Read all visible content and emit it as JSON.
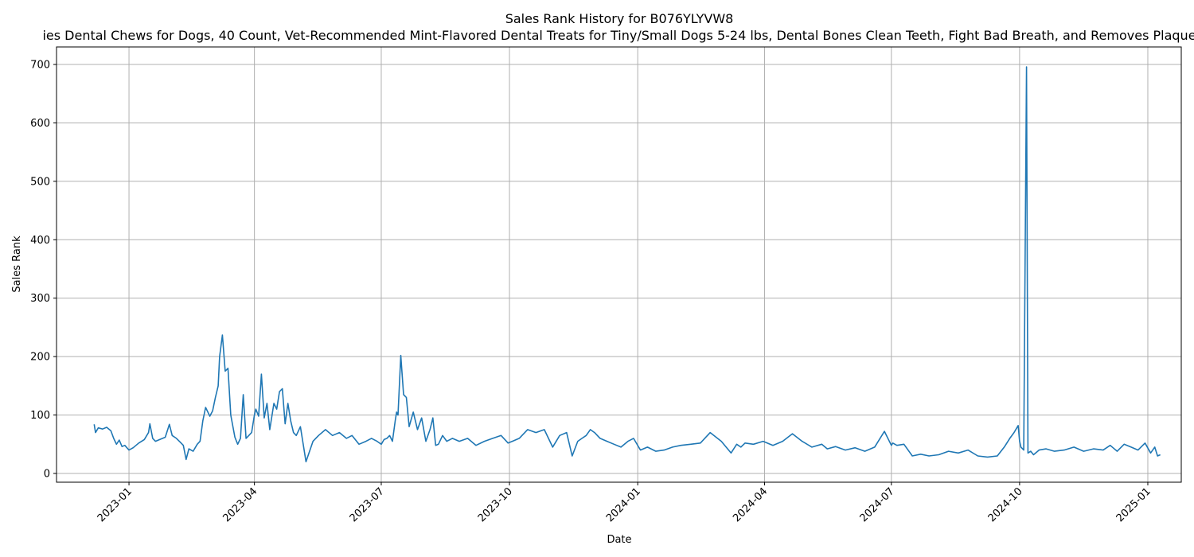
{
  "chart_data": {
    "type": "line",
    "title": "Sales Rank History for B076YLYVW8",
    "subtitle": "ies Dental Chews for Dogs, 40 Count, Vet-Recommended Mint-Flavored Dental Treats for Tiny/Small Dogs 5-24 lbs, Dental Bones Clean Teeth, Fight Bad Breath, and Removes Plaque",
    "xlabel": "Date",
    "ylabel": "Sales Rank",
    "xlim": [
      "2022-11-10",
      "2025-01-25"
    ],
    "ylim": [
      -15,
      730
    ],
    "x_ticks": [
      "2023-01",
      "2023-04",
      "2023-07",
      "2023-10",
      "2024-01",
      "2024-04",
      "2024-07",
      "2024-10",
      "2025-01"
    ],
    "y_ticks": [
      0,
      100,
      200,
      300,
      400,
      500,
      600,
      700
    ],
    "grid": true,
    "line_color": "#1f77b4",
    "series": [
      {
        "x": [
          "2022-12-07",
          "2022-12-08",
          "2022-12-10",
          "2022-12-13",
          "2022-12-16",
          "2022-12-19",
          "2022-12-21",
          "2022-12-23",
          "2022-12-25",
          "2022-12-27",
          "2022-12-29",
          "2023-01-01",
          "2023-01-04",
          "2023-01-08",
          "2023-01-12",
          "2023-01-15",
          "2023-01-16",
          "2023-01-18",
          "2023-01-20",
          "2023-01-23",
          "2023-01-27",
          "2023-01-30",
          "2023-02-01",
          "2023-02-04",
          "2023-02-07",
          "2023-02-09",
          "2023-02-11",
          "2023-02-13",
          "2023-02-16",
          "2023-02-19",
          "2023-02-21",
          "2023-02-23",
          "2023-02-25",
          "2023-02-28",
          "2023-03-02",
          "2023-03-04",
          "2023-03-06",
          "2023-03-07",
          "2023-03-09",
          "2023-03-11",
          "2023-03-13",
          "2023-03-15",
          "2023-03-18",
          "2023-03-20",
          "2023-03-22",
          "2023-03-24",
          "2023-03-26",
          "2023-03-28",
          "2023-03-30",
          "2023-04-01",
          "2023-04-02",
          "2023-04-04",
          "2023-04-06",
          "2023-04-08",
          "2023-04-10",
          "2023-04-12",
          "2023-04-15",
          "2023-04-17",
          "2023-04-19",
          "2023-04-21",
          "2023-04-23",
          "2023-04-25",
          "2023-04-27",
          "2023-04-29",
          "2023-05-01",
          "2023-05-04",
          "2023-05-08",
          "2023-05-13",
          "2023-05-17",
          "2023-05-22",
          "2023-05-27",
          "2023-06-01",
          "2023-06-06",
          "2023-06-10",
          "2023-06-15",
          "2023-06-20",
          "2023-06-24",
          "2023-06-28",
          "2023-07-01",
          "2023-07-03",
          "2023-07-05",
          "2023-07-07",
          "2023-07-09",
          "2023-07-11",
          "2023-07-12",
          "2023-07-13",
          "2023-07-15",
          "2023-07-17",
          "2023-07-19",
          "2023-07-21",
          "2023-07-24",
          "2023-07-27",
          "2023-07-30",
          "2023-08-02",
          "2023-08-05",
          "2023-08-07",
          "2023-08-09",
          "2023-08-11",
          "2023-08-14",
          "2023-08-17",
          "2023-08-21",
          "2023-08-26",
          "2023-09-01",
          "2023-09-07",
          "2023-09-13",
          "2023-09-19",
          "2023-09-25",
          "2023-09-30",
          "2023-10-03",
          "2023-10-08",
          "2023-10-14",
          "2023-10-20",
          "2023-10-26",
          "2023-11-01",
          "2023-11-06",
          "2023-11-11",
          "2023-11-15",
          "2023-11-19",
          "2023-11-22",
          "2023-11-25",
          "2023-11-28",
          "2023-12-01",
          "2023-12-05",
          "2023-12-10",
          "2023-12-15",
          "2023-12-20",
          "2023-12-25",
          "2023-12-29",
          "2024-01-03",
          "2024-01-08",
          "2024-01-14",
          "2024-01-20",
          "2024-01-26",
          "2024-02-01",
          "2024-02-08",
          "2024-02-15",
          "2024-02-22",
          "2024-03-01",
          "2024-03-08",
          "2024-03-12",
          "2024-03-15",
          "2024-03-18",
          "2024-03-24",
          "2024-03-31",
          "2024-04-07",
          "2024-04-14",
          "2024-04-21",
          "2024-04-28",
          "2024-05-05",
          "2024-05-12",
          "2024-05-16",
          "2024-05-22",
          "2024-05-29",
          "2024-06-05",
          "2024-06-12",
          "2024-06-19",
          "2024-06-26",
          "2024-07-01",
          "2024-07-02",
          "2024-07-05",
          "2024-07-10",
          "2024-07-16",
          "2024-07-22",
          "2024-07-28",
          "2024-08-04",
          "2024-08-11",
          "2024-08-18",
          "2024-08-25",
          "2024-09-01",
          "2024-09-08",
          "2024-09-15",
          "2024-09-20",
          "2024-09-24",
          "2024-09-27",
          "2024-09-30",
          "2024-10-01",
          "2024-10-02",
          "2024-10-04",
          "2024-10-06",
          "2024-10-07",
          "2024-10-09",
          "2024-10-11",
          "2024-10-15",
          "2024-10-20",
          "2024-10-26",
          "2024-11-02",
          "2024-11-09",
          "2024-11-16",
          "2024-11-23",
          "2024-11-30",
          "2024-12-05",
          "2024-12-10",
          "2024-12-15",
          "2024-12-20",
          "2024-12-25",
          "2024-12-30",
          "2025-01-03",
          "2025-01-06",
          "2025-01-08",
          "2025-01-10"
        ],
        "values": [
          84,
          70,
          78,
          76,
          79,
          73,
          60,
          50,
          57,
          46,
          48,
          40,
          44,
          52,
          58,
          70,
          85,
          60,
          55,
          58,
          62,
          84,
          65,
          60,
          53,
          48,
          24,
          42,
          38,
          50,
          55,
          90,
          113,
          98,
          107,
          130,
          150,
          200,
          237,
          175,
          180,
          100,
          62,
          50,
          60,
          135,
          60,
          65,
          70,
          100,
          110,
          98,
          170,
          95,
          120,
          75,
          120,
          110,
          140,
          145,
          85,
          120,
          90,
          70,
          65,
          80,
          20,
          55,
          65,
          75,
          65,
          70,
          60,
          65,
          50,
          55,
          60,
          55,
          50,
          58,
          60,
          65,
          55,
          90,
          105,
          100,
          202,
          135,
          130,
          80,
          105,
          75,
          95,
          55,
          75,
          95,
          48,
          50,
          65,
          55,
          60,
          55,
          60,
          48,
          55,
          60,
          65,
          52,
          55,
          60,
          75,
          70,
          75,
          45,
          65,
          70,
          30,
          55,
          60,
          65,
          75,
          70,
          60,
          55,
          50,
          45,
          55,
          60,
          40,
          45,
          38,
          40,
          45,
          48,
          50,
          52,
          70,
          55,
          35,
          50,
          45,
          52,
          50,
          55,
          48,
          55,
          68,
          55,
          45,
          50,
          42,
          46,
          40,
          44,
          38,
          45,
          72,
          48,
          52,
          48,
          50,
          30,
          33,
          30,
          32,
          38,
          35,
          40,
          30,
          28,
          30,
          45,
          60,
          70,
          82,
          55,
          45,
          40,
          696,
          35,
          38,
          32,
          40,
          42,
          38,
          40,
          45,
          38,
          42,
          40,
          48,
          38,
          50,
          45,
          40,
          52,
          35,
          45,
          30,
          32
        ]
      }
    ]
  }
}
